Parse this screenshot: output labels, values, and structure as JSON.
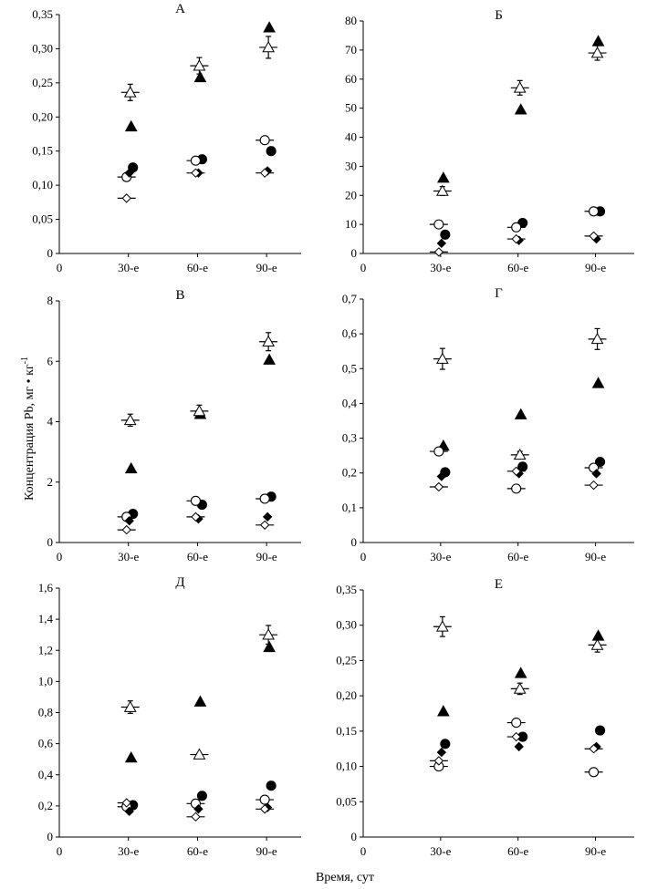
{
  "figure": {
    "ylabel": "Концентрация Pb, мг • кг",
    "ylabel_sup": "-1",
    "xlabel": "Время, сут"
  },
  "chart_data": [
    {
      "type": "scatter",
      "title": "А",
      "categories": [
        "0",
        "30-е",
        "60-е",
        "90-е"
      ],
      "x": [
        30,
        60,
        90
      ],
      "xlim": [
        0,
        105
      ],
      "ylim": [
        0,
        0.35
      ],
      "yticks": [
        "0",
        "0,05",
        "0,10",
        "0,15",
        "0,20",
        "0,25",
        "0,30",
        "0,35"
      ],
      "series": [
        {
          "marker": "filled-triangle",
          "values": [
            0.186,
            0.258,
            0.331
          ]
        },
        {
          "marker": "open-triangle",
          "values": [
            0.236,
            0.275,
            0.302
          ],
          "error": [
            0.012,
            0.012,
            0.016
          ],
          "xerr": true
        },
        {
          "marker": "filled-circle",
          "values": [
            0.126,
            0.138,
            0.15
          ]
        },
        {
          "marker": "open-circle",
          "values": [
            0.112,
            0.136,
            0.166
          ],
          "xerr": true
        },
        {
          "marker": "filled-diamond",
          "values": [
            0.118,
            0.118,
            0.121
          ]
        },
        {
          "marker": "open-diamond",
          "values": [
            0.081,
            0.118,
            0.118
          ],
          "xerr": true
        }
      ]
    },
    {
      "type": "scatter",
      "title": "Б",
      "categories": [
        "0",
        "30-е",
        "60-е",
        "90-е"
      ],
      "x": [
        30,
        60,
        90
      ],
      "xlim": [
        0,
        105
      ],
      "ylim": [
        0,
        80
      ],
      "yticks": [
        "0",
        "10",
        "20",
        "30",
        "40",
        "50",
        "60",
        "70",
        "80"
      ],
      "series": [
        {
          "marker": "filled-triangle",
          "values": [
            26,
            49.5,
            73
          ]
        },
        {
          "marker": "open-triangle",
          "values": [
            21.5,
            57,
            69
          ],
          "error": [
            1.5,
            2.5,
            2.5
          ],
          "xerr": true
        },
        {
          "marker": "filled-circle",
          "values": [
            6.5,
            10.5,
            14.5
          ]
        },
        {
          "marker": "open-circle",
          "values": [
            10,
            9,
            14.5
          ],
          "xerr": true
        },
        {
          "marker": "filled-diamond",
          "values": [
            3.5,
            4.5,
            5
          ]
        },
        {
          "marker": "open-diamond",
          "values": [
            0.5,
            5,
            6
          ],
          "xerr": true
        }
      ]
    },
    {
      "type": "scatter",
      "title": "В",
      "categories": [
        "0",
        "30-е",
        "60-е",
        "90-е"
      ],
      "x": [
        30,
        60,
        90
      ],
      "xlim": [
        0,
        105
      ],
      "ylim": [
        0,
        8
      ],
      "yticks": [
        "0",
        "2",
        "4",
        "6",
        "8"
      ],
      "series": [
        {
          "marker": "filled-triangle",
          "values": [
            2.45,
            4.25,
            6.05
          ]
        },
        {
          "marker": "open-triangle",
          "values": [
            4.05,
            4.35,
            6.65
          ],
          "error": [
            0.2,
            0.2,
            0.3
          ],
          "xerr": true
        },
        {
          "marker": "filled-circle",
          "values": [
            0.95,
            1.25,
            1.52
          ]
        },
        {
          "marker": "open-circle",
          "values": [
            0.85,
            1.38,
            1.45
          ],
          "xerr": true
        },
        {
          "marker": "filled-diamond",
          "values": [
            0.72,
            0.78,
            0.85
          ]
        },
        {
          "marker": "open-diamond",
          "values": [
            0.42,
            0.85,
            0.58
          ],
          "xerr": true
        }
      ]
    },
    {
      "type": "scatter",
      "title": "Г",
      "categories": [
        "0",
        "30-е",
        "60-е",
        "90-е"
      ],
      "x": [
        30,
        60,
        90
      ],
      "xlim": [
        0,
        105
      ],
      "ylim": [
        0,
        0.7
      ],
      "yticks": [
        "0",
        "0,1",
        "0,2",
        "0,3",
        "0,4",
        "0,5",
        "0,6",
        "0,7"
      ],
      "series": [
        {
          "marker": "filled-triangle",
          "values": [
            0.278,
            0.368,
            0.458
          ]
        },
        {
          "marker": "open-triangle",
          "values": [
            0.528,
            0.252,
            0.585
          ],
          "error": [
            0.03,
            0.01,
            0.03
          ],
          "xerr": true
        },
        {
          "marker": "filled-circle",
          "values": [
            0.202,
            0.218,
            0.232
          ]
        },
        {
          "marker": "open-circle",
          "values": [
            0.262,
            0.155,
            0.215
          ],
          "xerr": true
        },
        {
          "marker": "filled-diamond",
          "values": [
            0.19,
            0.198,
            0.198
          ]
        },
        {
          "marker": "open-diamond",
          "values": [
            0.16,
            0.205,
            0.165
          ],
          "xerr": true
        }
      ]
    },
    {
      "type": "scatter",
      "title": "Д",
      "categories": [
        "0",
        "30-е",
        "60-е",
        "90-е"
      ],
      "x": [
        30,
        60,
        90
      ],
      "xlim": [
        0,
        105
      ],
      "ylim": [
        0,
        1.6
      ],
      "yticks": [
        "0",
        "0,2",
        "0,4",
        "0,6",
        "0,8",
        "1,0",
        "1,2",
        "1,4",
        "1,6"
      ],
      "series": [
        {
          "marker": "filled-triangle",
          "values": [
            0.51,
            0.87,
            1.22
          ]
        },
        {
          "marker": "open-triangle",
          "values": [
            0.835,
            0.53,
            1.3
          ],
          "error": [
            0.04,
            0.01,
            0.06
          ],
          "xerr": true
        },
        {
          "marker": "filled-circle",
          "values": [
            0.205,
            0.265,
            0.33
          ]
        },
        {
          "marker": "open-circle",
          "values": [
            0.195,
            0.215,
            0.24
          ],
          "xerr": true
        },
        {
          "marker": "filled-diamond",
          "values": [
            0.165,
            0.18,
            0.19
          ]
        },
        {
          "marker": "open-diamond",
          "values": [
            0.22,
            0.13,
            0.18
          ],
          "xerr": true
        }
      ]
    },
    {
      "type": "scatter",
      "title": "Е",
      "categories": [
        "0",
        "30-е",
        "60-е",
        "90-е"
      ],
      "x": [
        30,
        60,
        90
      ],
      "xlim": [
        0,
        105
      ],
      "ylim": [
        0,
        0.35
      ],
      "yticks": [
        "0",
        "0,05",
        "0,10",
        "0,15",
        "0,20",
        "0,25",
        "0,30",
        "0,35"
      ],
      "series": [
        {
          "marker": "filled-triangle",
          "values": [
            0.178,
            0.232,
            0.285
          ]
        },
        {
          "marker": "open-triangle",
          "values": [
            0.298,
            0.21,
            0.272
          ],
          "error": [
            0.014,
            0.008,
            0.01
          ],
          "xerr": true
        },
        {
          "marker": "filled-circle",
          "values": [
            0.132,
            0.142,
            0.151
          ]
        },
        {
          "marker": "open-circle",
          "values": [
            0.1,
            0.162,
            0.092
          ],
          "xerr": true
        },
        {
          "marker": "filled-diamond",
          "values": [
            0.12,
            0.128,
            0.128
          ]
        },
        {
          "marker": "open-diamond",
          "values": [
            0.108,
            0.142,
            0.125
          ],
          "xerr": true
        }
      ]
    }
  ]
}
